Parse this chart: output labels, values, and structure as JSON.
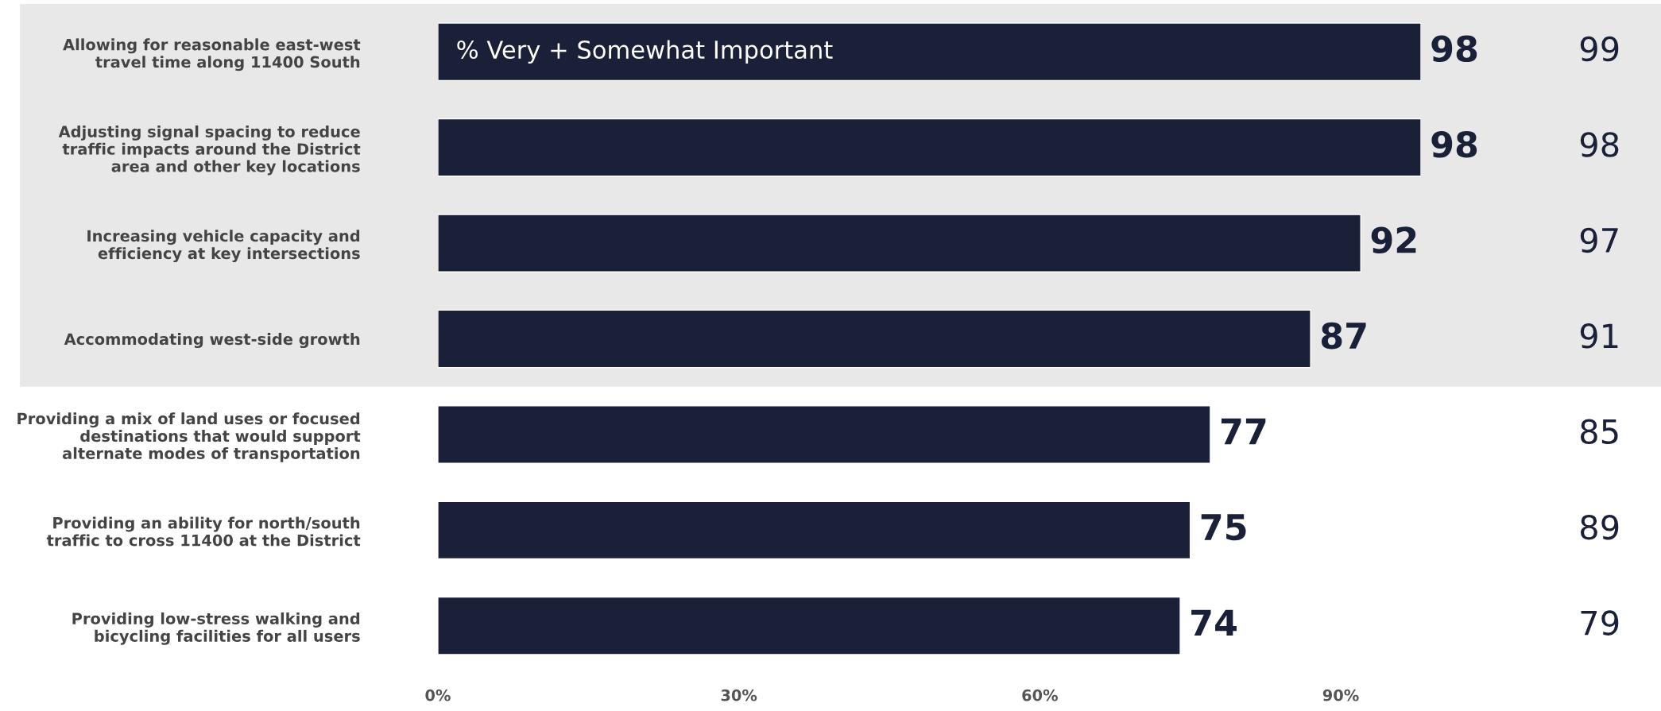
{
  "chart_data": {
    "type": "bar",
    "orientation": "horizontal",
    "categories": [
      "Allowing for reasonable east-west\ntravel time along 11400 South",
      "Adjusting signal spacing to reduce\ntraffic impacts around the District\narea and other key locations",
      "Increasing vehicle capacity and\nefficiency at key intersections",
      "Accommodating west-side growth",
      "Providing a mix of land uses or focused\ndestinations that would support\nalternate modes of transportation",
      "Providing an ability for north/south\ntraffic to cross 11400 at the District",
      "Providing low-stress walking and\nbicycling facilities for all users"
    ],
    "series": [
      {
        "color": "#1b2039",
        "values": [
          98,
          98,
          92,
          87,
          77,
          75,
          74
        ]
      }
    ],
    "xlim": [
      0,
      98
    ],
    "data_labels": true,
    "xticks": [
      {
        "value": 0,
        "label": "0%"
      },
      {
        "value": 30,
        "label": "30%"
      },
      {
        "value": 60,
        "label": "60%"
      },
      {
        "value": 90,
        "label": "90%"
      }
    ],
    "annotations": [
      {
        "text": "% Very + Somewhat Important",
        "x": 0,
        "y": "Allowing for reasonable east-west\ntravel time along 11400 South"
      },
      "99",
      "98",
      "97",
      "91",
      "85",
      "89",
      "79"
    ],
    "bands": [
      {
        "axis": "y",
        "from": "Allowing for reasonable east-west\ntravel time along 11400 South",
        "to": "Accommodating west-side growth",
        "color": "#e8e8e8"
      }
    ],
    "grid": false
  }
}
